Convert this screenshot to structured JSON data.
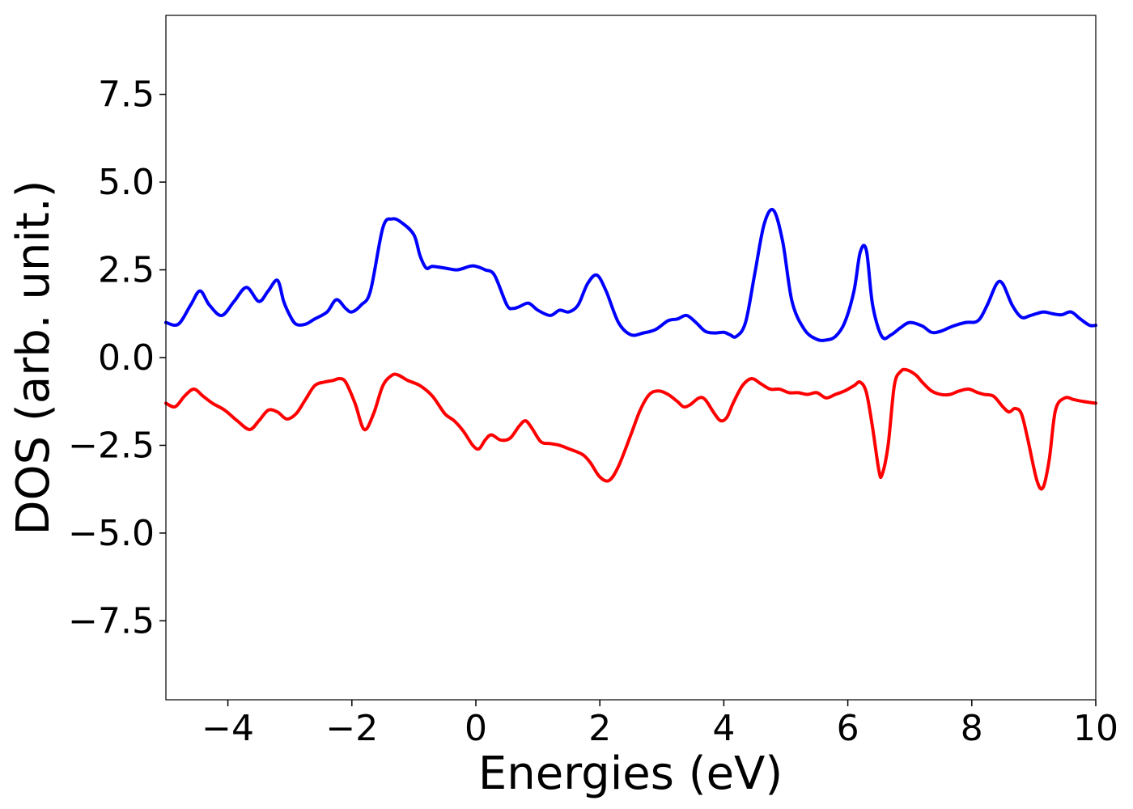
{
  "chart_data": {
    "type": "line",
    "title": "",
    "xlabel": "Energies (eV)",
    "ylabel": "DOS (arb. unit.)",
    "xlim": [
      -5,
      10
    ],
    "ylim": [
      -9.75,
      9.75
    ],
    "x_ticks": [
      -4,
      -2,
      0,
      2,
      4,
      6,
      8,
      10
    ],
    "x_tick_labels": [
      "−4",
      "−2",
      "0",
      "2",
      "4",
      "6",
      "8",
      "10"
    ],
    "y_ticks": [
      -7.5,
      -5.0,
      -2.5,
      0.0,
      2.5,
      5.0,
      7.5
    ],
    "y_tick_labels": [
      "−7.5",
      "−5.0",
      "−2.5",
      "0.0",
      "2.5",
      "5.0",
      "7.5"
    ],
    "grid": false,
    "legend": "none",
    "series": [
      {
        "color": "#0000ff",
        "x": [
          -5.0,
          -4.8,
          -4.6,
          -4.45,
          -4.3,
          -4.1,
          -3.9,
          -3.7,
          -3.5,
          -3.35,
          -3.2,
          -3.1,
          -3.0,
          -2.9,
          -2.75,
          -2.6,
          -2.4,
          -2.25,
          -2.1,
          -2.0,
          -1.85,
          -1.7,
          -1.5,
          -1.35,
          -1.2,
          -1.0,
          -0.9,
          -0.8,
          -0.7,
          -0.5,
          -0.3,
          -0.1,
          0.0,
          0.15,
          0.3,
          0.5,
          0.6,
          0.7,
          0.85,
          1.0,
          1.2,
          1.35,
          1.5,
          1.65,
          1.8,
          1.95,
          2.1,
          2.3,
          2.5,
          2.7,
          2.9,
          3.1,
          3.25,
          3.4,
          3.55,
          3.7,
          3.85,
          4.0,
          4.1,
          4.2,
          4.35,
          4.5,
          4.65,
          4.8,
          4.95,
          5.1,
          5.3,
          5.5,
          5.65,
          5.8,
          5.95,
          6.1,
          6.2,
          6.3,
          6.4,
          6.55,
          6.7,
          6.85,
          7.0,
          7.2,
          7.35,
          7.5,
          7.7,
          7.9,
          8.1,
          8.25,
          8.4,
          8.5,
          8.65,
          8.8,
          8.95,
          9.15,
          9.3,
          9.45,
          9.6,
          9.75,
          9.9,
          10.0
        ],
        "y": [
          1.0,
          0.95,
          1.5,
          1.9,
          1.5,
          1.2,
          1.6,
          2.0,
          1.6,
          1.9,
          2.2,
          1.6,
          1.2,
          0.95,
          0.95,
          1.1,
          1.3,
          1.65,
          1.4,
          1.3,
          1.5,
          1.9,
          3.7,
          3.95,
          3.85,
          3.5,
          2.9,
          2.55,
          2.6,
          2.55,
          2.5,
          2.6,
          2.6,
          2.5,
          2.35,
          1.5,
          1.4,
          1.45,
          1.55,
          1.35,
          1.2,
          1.35,
          1.3,
          1.5,
          2.1,
          2.35,
          1.9,
          1.0,
          0.65,
          0.7,
          0.8,
          1.05,
          1.1,
          1.2,
          1.0,
          0.75,
          0.7,
          0.72,
          0.65,
          0.6,
          1.0,
          2.4,
          3.8,
          4.2,
          3.3,
          1.6,
          0.8,
          0.52,
          0.5,
          0.6,
          1.0,
          1.9,
          3.0,
          3.05,
          1.5,
          0.6,
          0.65,
          0.85,
          1.0,
          0.9,
          0.72,
          0.75,
          0.9,
          1.0,
          1.05,
          1.5,
          2.1,
          2.1,
          1.5,
          1.15,
          1.2,
          1.3,
          1.25,
          1.22,
          1.3,
          1.1,
          0.92,
          0.92
        ]
      },
      {
        "color": "#ff0000",
        "x": [
          -5.0,
          -4.85,
          -4.7,
          -4.55,
          -4.4,
          -4.25,
          -4.05,
          -3.85,
          -3.65,
          -3.5,
          -3.35,
          -3.2,
          -3.05,
          -2.9,
          -2.75,
          -2.6,
          -2.45,
          -2.3,
          -2.2,
          -2.1,
          -1.95,
          -1.8,
          -1.65,
          -1.5,
          -1.35,
          -1.25,
          -1.1,
          -0.9,
          -0.7,
          -0.5,
          -0.35,
          -0.2,
          -0.05,
          0.05,
          0.15,
          0.25,
          0.4,
          0.55,
          0.7,
          0.8,
          0.9,
          1.05,
          1.2,
          1.35,
          1.5,
          1.65,
          1.75,
          1.85,
          2.0,
          2.15,
          2.3,
          2.5,
          2.65,
          2.8,
          2.95,
          3.1,
          3.25,
          3.35,
          3.45,
          3.6,
          3.7,
          3.85,
          3.95,
          4.05,
          4.15,
          4.3,
          4.45,
          4.6,
          4.75,
          4.9,
          5.05,
          5.2,
          5.35,
          5.5,
          5.65,
          5.8,
          5.95,
          6.1,
          6.2,
          6.3,
          6.4,
          6.5,
          6.55,
          6.65,
          6.75,
          6.85,
          6.95,
          7.1,
          7.2,
          7.35,
          7.5,
          7.65,
          7.8,
          7.95,
          8.1,
          8.2,
          8.35,
          8.5,
          8.6,
          8.7,
          8.8,
          8.9,
          9.05,
          9.15,
          9.25,
          9.35,
          9.5,
          9.65,
          9.8,
          10.0
        ],
        "y": [
          -1.3,
          -1.4,
          -1.1,
          -0.9,
          -1.1,
          -1.3,
          -1.5,
          -1.8,
          -2.05,
          -1.8,
          -1.5,
          -1.55,
          -1.75,
          -1.6,
          -1.2,
          -0.8,
          -0.7,
          -0.65,
          -0.6,
          -0.7,
          -1.3,
          -2.05,
          -1.6,
          -0.8,
          -0.5,
          -0.5,
          -0.65,
          -0.8,
          -1.1,
          -1.6,
          -1.8,
          -2.1,
          -2.5,
          -2.6,
          -2.35,
          -2.2,
          -2.35,
          -2.3,
          -1.95,
          -1.8,
          -2.0,
          -2.4,
          -2.45,
          -2.5,
          -2.6,
          -2.7,
          -2.8,
          -3.0,
          -3.4,
          -3.5,
          -3.1,
          -2.2,
          -1.5,
          -1.05,
          -0.95,
          -1.05,
          -1.25,
          -1.4,
          -1.35,
          -1.15,
          -1.2,
          -1.6,
          -1.8,
          -1.7,
          -1.3,
          -0.8,
          -0.6,
          -0.75,
          -0.9,
          -0.9,
          -1.0,
          -1.0,
          -1.05,
          -1.0,
          -1.15,
          -1.05,
          -0.95,
          -0.8,
          -0.7,
          -1.0,
          -2.0,
          -3.2,
          -3.35,
          -2.5,
          -0.8,
          -0.4,
          -0.35,
          -0.5,
          -0.7,
          -0.95,
          -1.05,
          -1.05,
          -0.95,
          -0.9,
          -1.0,
          -1.05,
          -1.1,
          -1.4,
          -1.55,
          -1.45,
          -1.6,
          -2.3,
          -3.5,
          -3.7,
          -2.9,
          -1.5,
          -1.15,
          -1.2,
          -1.25,
          -1.3
        ]
      }
    ]
  }
}
